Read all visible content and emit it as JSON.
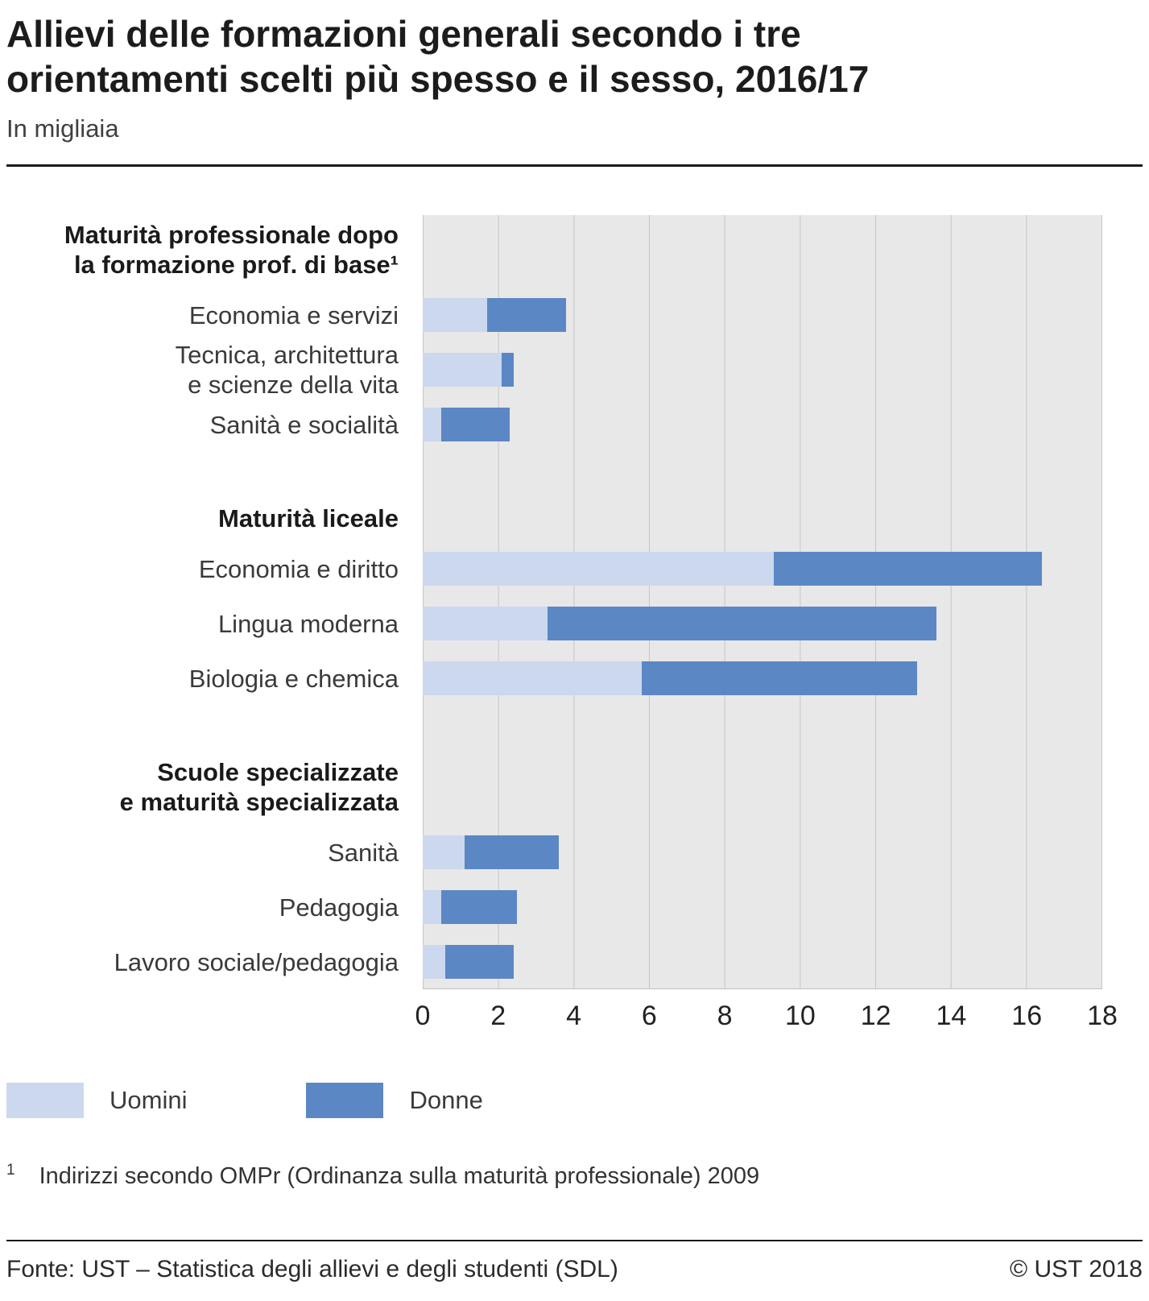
{
  "header": {
    "title_lines": [
      "Allievi delle formazioni generali secondo i tre",
      "orientamenti scelti più spesso e il sesso, 2016/17"
    ],
    "subtitle": "In migliaia"
  },
  "chart_data": {
    "type": "bar",
    "orientation": "horizontal",
    "stacked": true,
    "unit": "thousands",
    "xlim": [
      0,
      18
    ],
    "xticks": [
      0,
      2,
      4,
      6,
      8,
      10,
      12,
      14,
      16,
      18
    ],
    "grid": true,
    "series_names": [
      "Uomini",
      "Donne"
    ],
    "colors": {
      "uomini": "#ccd8ee",
      "donne": "#5b87c5"
    },
    "groups": [
      {
        "label_lines": [
          "Maturità professionale dopo",
          "la formazione prof. di base¹"
        ],
        "rows": [
          {
            "label_lines": [
              "Economia e servizi"
            ],
            "uomini": 1.7,
            "donne": 2.1
          },
          {
            "label_lines": [
              "Tecnica, architettura",
              "e scienze della vita"
            ],
            "uomini": 2.1,
            "donne": 0.3
          },
          {
            "label_lines": [
              "Sanità e socialità"
            ],
            "uomini": 0.5,
            "donne": 1.8
          }
        ]
      },
      {
        "label_lines": [
          "Maturità liceale"
        ],
        "rows": [
          {
            "label_lines": [
              "Economia e diritto"
            ],
            "uomini": 9.3,
            "donne": 7.1
          },
          {
            "label_lines": [
              "Lingua moderna"
            ],
            "uomini": 3.3,
            "donne": 10.3
          },
          {
            "label_lines": [
              "Biologia e chemica"
            ],
            "uomini": 5.8,
            "donne": 7.3
          }
        ]
      },
      {
        "label_lines": [
          "Scuole specializzate",
          "e maturità specializzata"
        ],
        "rows": [
          {
            "label_lines": [
              "Sanità"
            ],
            "uomini": 1.1,
            "donne": 2.5
          },
          {
            "label_lines": [
              "Pedagogia"
            ],
            "uomini": 0.5,
            "donne": 2.0
          },
          {
            "label_lines": [
              "Lavoro sociale/pedagogia"
            ],
            "uomini": 0.6,
            "donne": 1.8
          }
        ]
      }
    ]
  },
  "legend": {
    "uomini": "Uomini",
    "donne": "Donne"
  },
  "footnote": {
    "marker": "1",
    "text": "Indirizzi secondo OMPr (Ordinanza sulla maturità professionale) 2009"
  },
  "footer": {
    "source": "Fonte: UST – Statistica degli allievi e degli studenti (SDL)",
    "copyright": "© UST 2018"
  }
}
